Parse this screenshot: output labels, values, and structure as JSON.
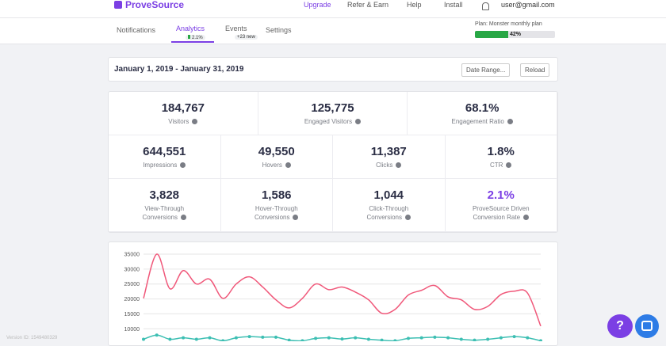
{
  "nav": {
    "logo": "ProveSource",
    "links": [
      "Upgrade",
      "Refer & Earn",
      "Help",
      "Install"
    ],
    "user": "user@gmail.com"
  },
  "tabs": [
    {
      "label": "Notifications"
    },
    {
      "label": "Analytics",
      "badge": "2.1%",
      "active": true
    },
    {
      "label": "Events",
      "badge": "+23 new"
    },
    {
      "label": "Settings"
    }
  ],
  "plan": {
    "label": "Plan: Monster monthly plan",
    "progress": 42,
    "progress_label": "42%"
  },
  "date_bar": {
    "range": "January 1, 2019 - January 31, 2019",
    "buttons": [
      "Date Range...",
      "Reload"
    ]
  },
  "stats": [
    [
      {
        "value": "184,767",
        "label": "Visitors"
      },
      {
        "value": "125,775",
        "label": "Engaged Visitors"
      },
      {
        "value": "68.1%",
        "label": "Engagement Ratio"
      }
    ],
    [
      {
        "value": "644,551",
        "label": "Impressions"
      },
      {
        "value": "49,550",
        "label": "Hovers"
      },
      {
        "value": "11,387",
        "label": "Clicks"
      },
      {
        "value": "1.8%",
        "label": "CTR"
      }
    ],
    [
      {
        "value": "3,828",
        "label": "View-Through Conversions"
      },
      {
        "value": "1,586",
        "label": "Hover-Through Conversions"
      },
      {
        "value": "1,044",
        "label": "Click-Through Conversions"
      },
      {
        "value": "2.1%",
        "label": "ProveSource Driven Conversion Rate",
        "highlight": true
      }
    ]
  ],
  "chart_data": {
    "type": "line",
    "series": [
      {
        "color": "#f0587a",
        "markers": false,
        "values": [
          20200,
          35000,
          23400,
          29500,
          25000,
          26600,
          20200,
          25000,
          27400,
          24000,
          19700,
          17000,
          20200,
          25000,
          23100,
          24000,
          22300,
          19700,
          15200,
          16500,
          21300,
          22900,
          24500,
          20700,
          19700,
          16500,
          17500,
          21500,
          22600,
          22000,
          10900
        ]
      },
      {
        "color": "#3dbfb3",
        "markers": true,
        "values": [
          6500,
          7900,
          6500,
          7000,
          6500,
          7000,
          6000,
          7000,
          7400,
          7200,
          7200,
          6200,
          6000,
          6800,
          7000,
          6600,
          7000,
          6500,
          6200,
          6000,
          6800,
          7000,
          7200,
          7000,
          6500,
          6200,
          6500,
          7000,
          7400,
          7000,
          6000
        ]
      }
    ],
    "ylim": [
      0,
      35000
    ],
    "yticks": [
      10000,
      15000,
      20000,
      25000,
      30000,
      35000
    ],
    "grid": true
  },
  "footer": {
    "version": "Version ID: 1549480329"
  },
  "help_button": "?"
}
